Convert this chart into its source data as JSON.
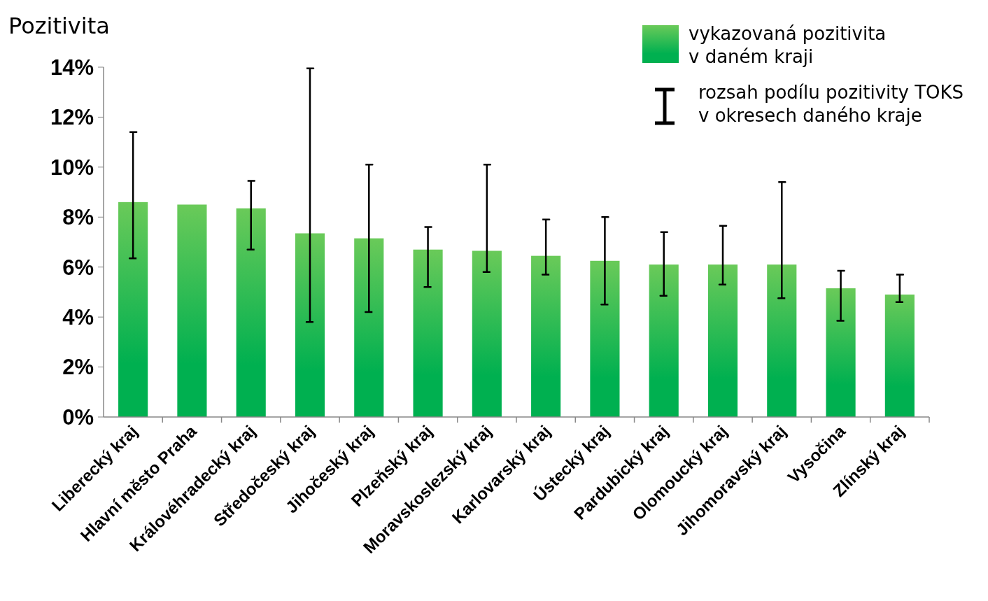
{
  "chart_data": {
    "type": "bar",
    "ylabel": "Pozitivita",
    "categories": [
      "Liberecký kraj",
      "Hlavní město Praha",
      "Královéhradecký kraj",
      "Středočeský kraj",
      "Jihočeský kraj",
      "Plzeňský kraj",
      "Moravskoslezský kraj",
      "Karlovarský kraj",
      "Ústecký kraj",
      "Pardubický kraj",
      "Olomoucký kraj",
      "Jihomoravský kraj",
      "Vysočina",
      "Zlínský kraj"
    ],
    "series": [
      {
        "name": "vykazovaná pozitivita\nv daném kraji",
        "color": "#00b050",
        "values": [
          8.6,
          8.5,
          8.35,
          7.35,
          7.15,
          6.7,
          6.65,
          6.45,
          6.25,
          6.1,
          6.1,
          6.1,
          5.15,
          4.9
        ],
        "errors": [
          [
            6.35,
            11.4
          ],
          null,
          [
            6.7,
            9.45
          ],
          [
            3.8,
            13.95
          ],
          [
            4.2,
            10.1
          ],
          [
            5.2,
            7.6
          ],
          [
            5.8,
            10.1
          ],
          [
            5.7,
            7.9
          ],
          [
            4.5,
            8.0
          ],
          [
            4.85,
            7.4
          ],
          [
            5.3,
            7.65
          ],
          [
            4.75,
            9.4
          ],
          [
            3.85,
            5.85
          ],
          [
            4.6,
            5.7
          ]
        ]
      }
    ],
    "annotations": [
      "rozsah podílu pozitivity TOKS\nv okresech daného kraje"
    ],
    "ylim": [
      0,
      14
    ],
    "yticks": [
      {
        "value": 0,
        "label": "0%"
      },
      {
        "value": 2,
        "label": "2%"
      },
      {
        "value": 4,
        "label": "4%"
      },
      {
        "value": 6,
        "label": "6%"
      },
      {
        "value": 8,
        "label": "8%"
      },
      {
        "value": 10,
        "label": "10%"
      },
      {
        "value": 12,
        "label": "12%"
      },
      {
        "value": 14,
        "label": "14%"
      }
    ],
    "legend": "top right",
    "grid": false
  }
}
